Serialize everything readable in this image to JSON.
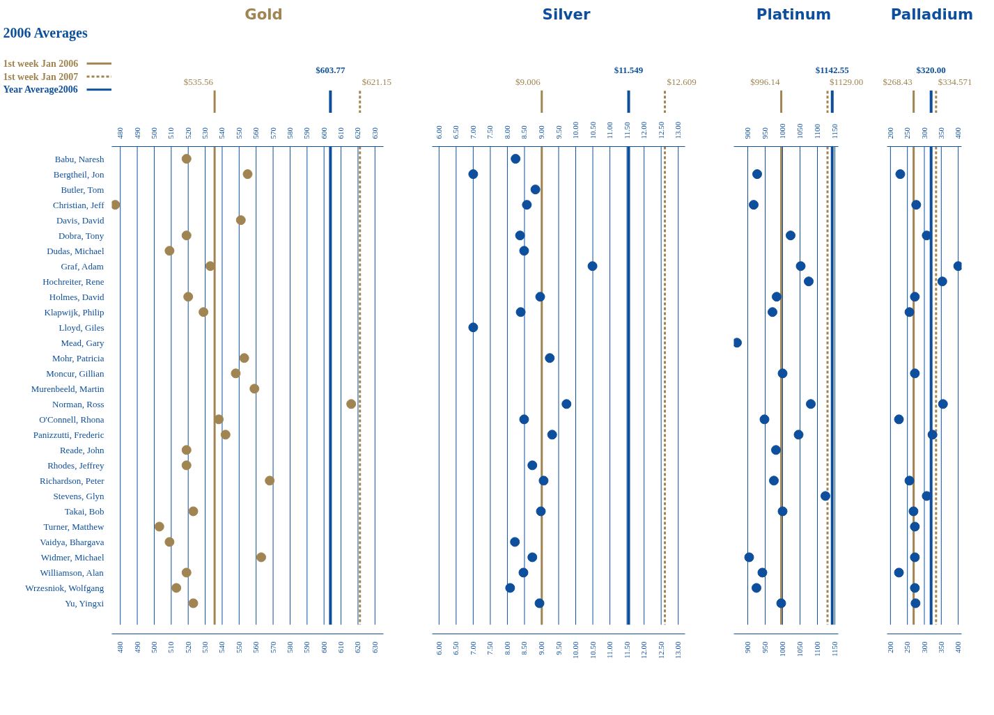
{
  "chart_data": [
    {
      "type": "scatter",
      "title": "Gold",
      "orientation": "horizontal",
      "marker": "circle",
      "grid": "x",
      "annotations": [
        "2006 Averages",
        "1st week Jan 2006",
        "1st week Jan 2007",
        "Year Average2006"
      ],
      "categories": [
        "Babu, Naresh",
        "Bergtheil, Jon",
        "Butler, Tom",
        "Christian, Jeff",
        "Davis, David",
        "Dobra, Tony",
        "Dudas, Michael",
        "Graf, Adam",
        "Hochreiter, Rene",
        "Holmes, David",
        "Klapwijk, Philip",
        "Lloyd, Giles",
        "Mead, Gary",
        "Mohr, Patricia",
        "Moncur, Gillian",
        "Murenbeeld, Martin",
        "Norman, Ross",
        "O'Connell, Rhona",
        "Panizzutti, Frederic",
        "Reade, John",
        "Rhodes, Jeffrey",
        "Richardson, Peter",
        "Stevens, Glyn",
        "Takai, Bob",
        "Turner, Matthew",
        "Vaidya, Bhargava",
        "Widmer, Michael",
        "Williamson, Alan",
        "Wrzesniok, Wolfgang",
        "Yu, Yingxi"
      ],
      "series": [
        {
          "color": "#a08552",
          "values": [
            519,
            555,
            null,
            477,
            551,
            519,
            509,
            533,
            null,
            520,
            529,
            null,
            null,
            553,
            548,
            559,
            616,
            538,
            542,
            519,
            519,
            568,
            null,
            523,
            503,
            509,
            563,
            519,
            513,
            523
          ]
        }
      ],
      "xlim": [
        475,
        635
      ],
      "xticks": [
        480,
        490,
        500,
        510,
        520,
        530,
        540,
        550,
        560,
        570,
        580,
        590,
        600,
        610,
        620,
        630
      ],
      "x2lim": [
        475,
        635
      ],
      "x2ticks": [
        480,
        490,
        500,
        510,
        520,
        530,
        540,
        550,
        560,
        570,
        580,
        590,
        600,
        610,
        620,
        630
      ],
      "ref_lines": [
        {
          "axis": "x",
          "value": 535.56,
          "label": "$535.56",
          "color": "#a08552",
          "line_style": "solid"
        },
        {
          "axis": "x",
          "value": 621.15,
          "label": "$621.15",
          "color": "#a08552",
          "line_style": "dashed"
        },
        {
          "axis": "x",
          "value": 603.77,
          "label": "$603.77",
          "color": "#0d4f9c",
          "line_style": "solid"
        }
      ]
    },
    {
      "type": "scatter",
      "title": "Silver",
      "orientation": "horizontal",
      "marker": "circle",
      "grid": "x",
      "tick_labels": "x",
      "series": [
        {
          "color": "#0d4f9c",
          "values": [
            8.24,
            7.0,
            8.82,
            8.57,
            null,
            8.37,
            8.49,
            10.49,
            null,
            8.96,
            8.39,
            7.0,
            null,
            9.24,
            null,
            null,
            9.73,
            8.49,
            9.31,
            null,
            8.73,
            9.06,
            null,
            8.98,
            null,
            8.22,
            8.73,
            8.47,
            8.08,
            8.94
          ]
        }
      ],
      "xlim": [
        5.8,
        13.2
      ],
      "xticks": [
        {
          "value": 6,
          "label": "6.00"
        },
        {
          "value": 6.5,
          "label": "6.50"
        },
        {
          "value": 7,
          "label": "7.00"
        },
        {
          "value": 7.5,
          "label": "7.50"
        },
        {
          "value": 8,
          "label": "8.00"
        },
        {
          "value": 8.5,
          "label": "8.50"
        },
        {
          "value": 9,
          "label": "9.00"
        },
        {
          "value": 9.5,
          "label": "9.50"
        },
        {
          "value": 10,
          "label": "10.00"
        },
        {
          "value": 10.5,
          "label": "10.50"
        },
        {
          "value": 11,
          "label": "11.00"
        },
        {
          "value": 11.5,
          "label": "11.50"
        },
        {
          "value": 12,
          "label": "12.00"
        },
        {
          "value": 12.5,
          "label": "12.50"
        },
        {
          "value": 13,
          "label": "13.00"
        }
      ],
      "x2lim": [
        5.8,
        13.2
      ],
      "x2ticks": [
        {
          "value": 6,
          "label": "6.00"
        },
        {
          "value": 6.5,
          "label": "6.50"
        },
        {
          "value": 7,
          "label": "7.00"
        },
        {
          "value": 7.5,
          "label": "7.50"
        },
        {
          "value": 8,
          "label": "8.00"
        },
        {
          "value": 8.5,
          "label": "8.50"
        },
        {
          "value": 9,
          "label": "9.00"
        },
        {
          "value": 9.5,
          "label": "9.50"
        },
        {
          "value": 10,
          "label": "10.00"
        },
        {
          "value": 10.5,
          "label": "10.50"
        },
        {
          "value": 11,
          "label": "11.00"
        },
        {
          "value": 11.5,
          "label": "11.50"
        },
        {
          "value": 12,
          "label": "12.00"
        },
        {
          "value": 12.5,
          "label": "12.50"
        },
        {
          "value": 13,
          "label": "13.00"
        }
      ],
      "ref_lines": [
        {
          "axis": "x",
          "value": 9.006,
          "label": "$9.006",
          "color": "#a08552",
          "line_style": "solid"
        },
        {
          "axis": "x",
          "value": 12.609,
          "label": "$12.609",
          "color": "#a08552",
          "line_style": "dashed"
        },
        {
          "axis": "x",
          "value": 11.549,
          "label": "$11.549",
          "color": "#0d4f9c",
          "line_style": "solid"
        }
      ]
    },
    {
      "type": "scatter",
      "title": "Platinum",
      "orientation": "horizontal",
      "marker": "circle",
      "grid": "x",
      "tick_labels": "x",
      "series": [
        {
          "color": "#0d4f9c",
          "values": [
            null,
            927,
            null,
            917,
            null,
            1023,
            null,
            1052,
            1075,
            983,
            971,
            null,
            869,
            null,
            1000,
            null,
            1081,
            948,
            1046,
            981,
            null,
            975,
            1123,
            1000,
            null,
            null,
            904,
            942,
            925,
            996
          ]
        }
      ],
      "xlim": [
        860,
        1160
      ],
      "xticks": [
        900,
        950,
        1000,
        1050,
        1100,
        1150
      ],
      "x2lim": [
        860,
        1160
      ],
      "x2ticks": [
        900,
        950,
        1000,
        1050,
        1100,
        1150
      ],
      "ref_lines": [
        {
          "axis": "x",
          "value": 996.14,
          "label": "$996.14",
          "color": "#a08552",
          "line_style": "solid"
        },
        {
          "axis": "x",
          "value": 1129.0,
          "label": "$1129.00",
          "color": "#a08552",
          "line_style": "dashed"
        },
        {
          "axis": "x",
          "value": 1142.55,
          "label": "$1142.55",
          "color": "#0d4f9c",
          "line_style": "solid"
        }
      ]
    },
    {
      "type": "scatter",
      "title": "Palladium",
      "orientation": "horizontal",
      "marker": "circle",
      "grid": "x",
      "tick_labels": "x",
      "series": [
        {
          "color": "#0d4f9c",
          "values": [
            null,
            229,
            null,
            276,
            null,
            307,
            null,
            400,
            353,
            272,
            256,
            null,
            null,
            null,
            272,
            null,
            355,
            225,
            324,
            null,
            null,
            256,
            307,
            268,
            272,
            null,
            272,
            225,
            272,
            274
          ]
        }
      ],
      "xlim": [
        190,
        410
      ],
      "xticks": [
        200,
        250,
        300,
        350,
        400
      ],
      "x2lim": [
        190,
        410
      ],
      "x2ticks": [
        200,
        250,
        300,
        350,
        400
      ],
      "ref_lines": [
        {
          "axis": "x",
          "value": 268.43,
          "label": "$268.43",
          "color": "#a08552",
          "line_style": "solid"
        },
        {
          "axis": "x",
          "value": 334.571,
          "label": "$334.571",
          "color": "#a08552",
          "line_style": "dashed"
        },
        {
          "axis": "x",
          "value": 320.0,
          "label": "$320.00",
          "color": "#0d4f9c",
          "line_style": "solid"
        }
      ]
    }
  ]
}
